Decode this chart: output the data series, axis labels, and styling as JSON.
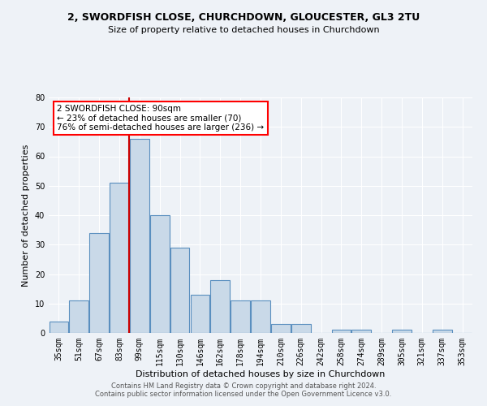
{
  "title_line1": "2, SWORDFISH CLOSE, CHURCHDOWN, GLOUCESTER, GL3 2TU",
  "title_line2": "Size of property relative to detached houses in Churchdown",
  "xlabel": "Distribution of detached houses by size in Churchdown",
  "ylabel": "Number of detached properties",
  "categories": [
    "35sqm",
    "51sqm",
    "67sqm",
    "83sqm",
    "99sqm",
    "115sqm",
    "130sqm",
    "146sqm",
    "162sqm",
    "178sqm",
    "194sqm",
    "210sqm",
    "226sqm",
    "242sqm",
    "258sqm",
    "274sqm",
    "289sqm",
    "305sqm",
    "321sqm",
    "337sqm",
    "353sqm"
  ],
  "values": [
    4,
    11,
    34,
    51,
    66,
    40,
    29,
    13,
    18,
    11,
    11,
    3,
    3,
    0,
    1,
    1,
    0,
    1,
    0,
    1,
    0
  ],
  "bar_color": "#c9d9e8",
  "bar_edge_color": "#5a8fbf",
  "vline_color": "#cc0000",
  "vline_pos": 3.5,
  "annotation_text_line1": "2 SWORDFISH CLOSE: 90sqm",
  "annotation_text_line2": "← 23% of detached houses are smaller (70)",
  "annotation_text_line3": "76% of semi-detached houses are larger (236) →",
  "ylim": [
    0,
    80
  ],
  "yticks": [
    0,
    10,
    20,
    30,
    40,
    50,
    60,
    70,
    80
  ],
  "background_color": "#eef2f7",
  "grid_color": "#ffffff",
  "title_fontsize": 9,
  "subtitle_fontsize": 8,
  "ylabel_fontsize": 8,
  "xlabel_fontsize": 8,
  "tick_fontsize": 7,
  "footnote": "Contains HM Land Registry data © Crown copyright and database right 2024.\nContains public sector information licensed under the Open Government Licence v3.0.",
  "footnote_fontsize": 6
}
